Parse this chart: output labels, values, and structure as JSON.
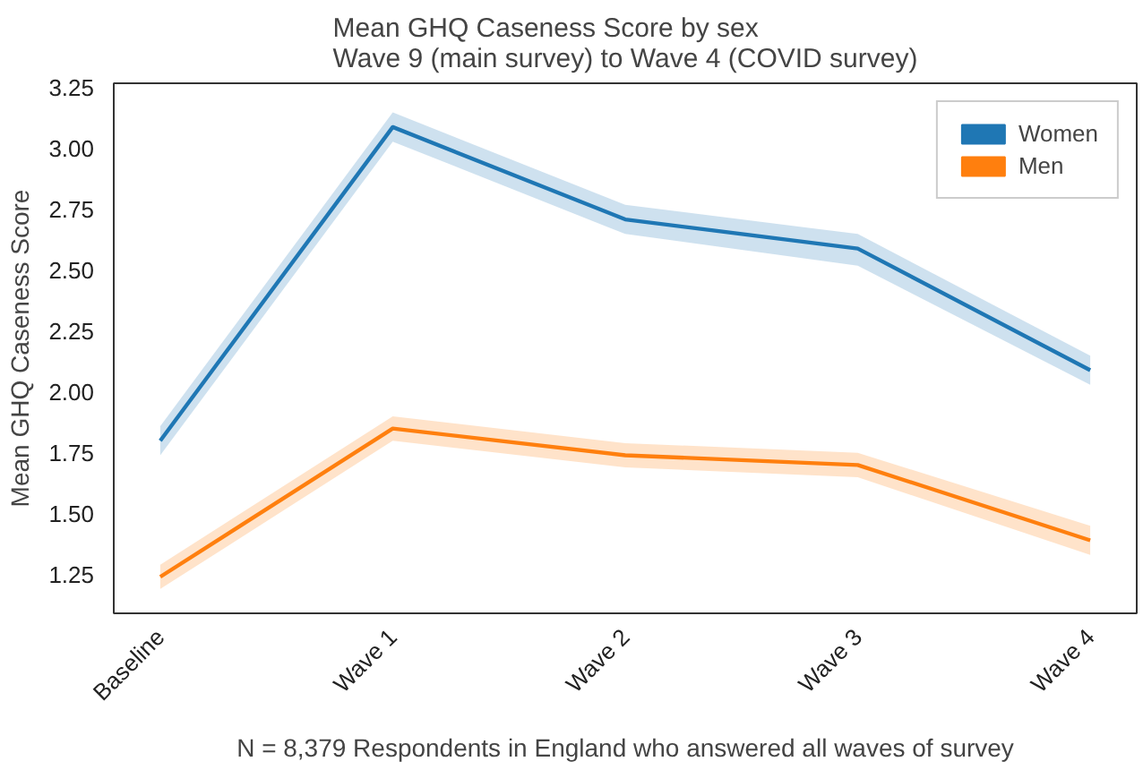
{
  "chart_data": {
    "type": "line",
    "title": "Mean GHQ Caseness Score by sex\nWave 9 (main survey) to Wave 4 (COVID survey)",
    "ylabel": "Mean GHQ Caseness Score",
    "categories": [
      "Baseline",
      "Wave 1",
      "Wave 2",
      "Wave 3",
      "Wave 4"
    ],
    "series": [
      {
        "name": "Women",
        "color": "#1f77b4",
        "values": [
          1.8,
          3.09,
          2.71,
          2.59,
          2.09
        ],
        "lower": [
          1.74,
          3.03,
          2.65,
          2.52,
          2.03
        ],
        "upper": [
          1.86,
          3.15,
          2.77,
          2.65,
          2.15
        ]
      },
      {
        "name": "Men",
        "color": "#ff7f0e",
        "values": [
          1.24,
          1.85,
          1.74,
          1.7,
          1.39
        ],
        "lower": [
          1.19,
          1.8,
          1.69,
          1.65,
          1.33
        ],
        "upper": [
          1.29,
          1.9,
          1.79,
          1.75,
          1.45
        ]
      }
    ],
    "ylim": [
      1.09,
      3.27
    ],
    "yticks": [
      1.25,
      {
        "value": 1.5,
        "label": "1.50"
      },
      1.75,
      {
        "value": 2,
        "label": "2.00"
      },
      2.25,
      {
        "value": 2.5,
        "label": "2.50"
      },
      2.75,
      {
        "value": 3,
        "label": "3.00"
      },
      3.25
    ],
    "legend": "top right",
    "grid": false,
    "annotations": [
      "N = 8,379 Respondents in England who answered all waves of survey"
    ]
  }
}
